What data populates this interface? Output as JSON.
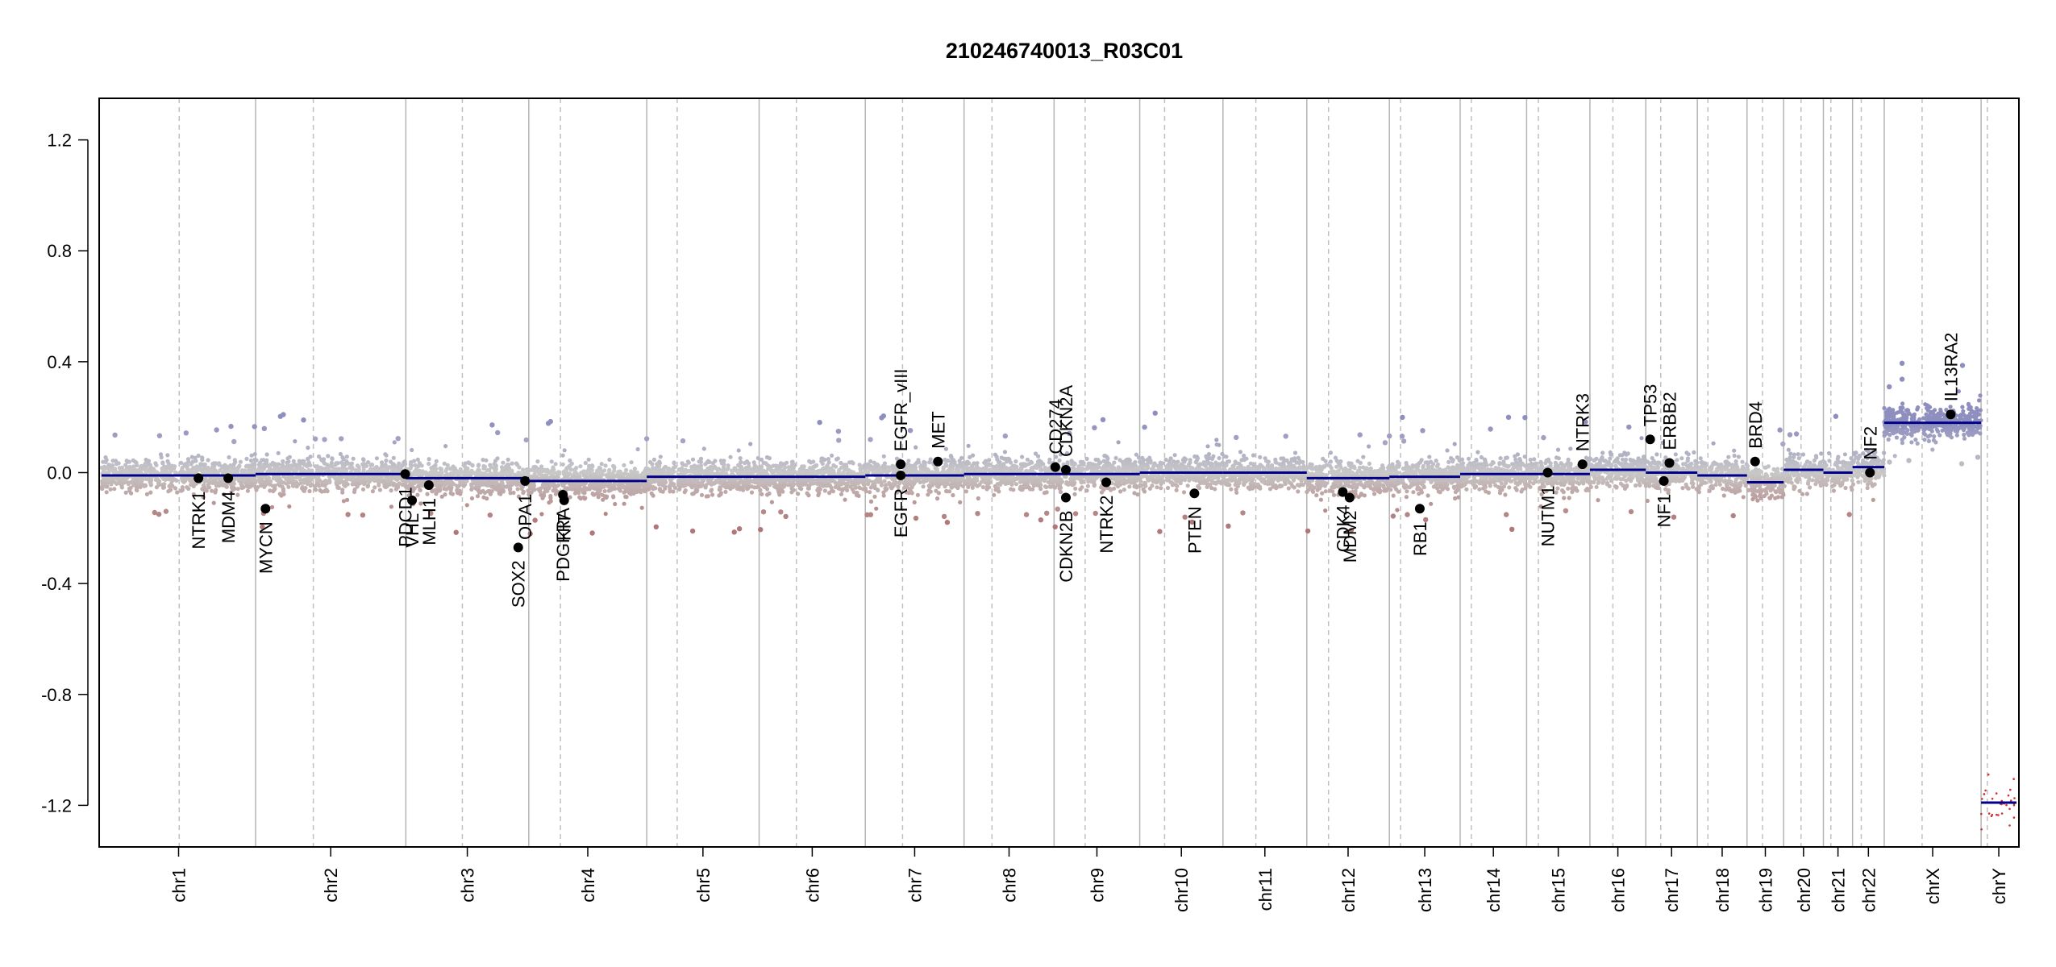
{
  "chart_data": {
    "type": "scatter",
    "title": "210246740013_R03C01",
    "xlabel": "",
    "ylabel": "",
    "ylim": [
      -1.35,
      1.35
    ],
    "yticks": [
      -1.2,
      -0.8,
      -0.4,
      0.0,
      0.4,
      0.8,
      1.2
    ],
    "ytick_labels": [
      "-1.2",
      "-0.8",
      "-0.4",
      "0.0",
      "0.4",
      "0.8",
      "1.2"
    ],
    "grid": false,
    "legend": "none",
    "colors": {
      "segment": "#00008b",
      "gain": "#8f8fbf",
      "loss": "#b07878",
      "neutral": "#c8c8c8",
      "gene_point": "#000000",
      "boundary": "#b4b4b4",
      "centromere": "#c0c0c0"
    },
    "chromosomes": [
      {
        "name": "chr1",
        "start": 0,
        "end": 248,
        "centromere": 125
      },
      {
        "name": "chr2",
        "start": 248,
        "end": 490,
        "centromere": 341
      },
      {
        "name": "chr3",
        "start": 490,
        "end": 688,
        "centromere": 581
      },
      {
        "name": "chr4",
        "start": 688,
        "end": 878,
        "centromere": 739
      },
      {
        "name": "chr5",
        "start": 878,
        "end": 1059,
        "centromere": 927
      },
      {
        "name": "chr6",
        "start": 1059,
        "end": 1230,
        "centromere": 1119
      },
      {
        "name": "chr7",
        "start": 1230,
        "end": 1389,
        "centromere": 1290
      },
      {
        "name": "chr8",
        "start": 1389,
        "end": 1534,
        "centromere": 1434
      },
      {
        "name": "chr9",
        "start": 1534,
        "end": 1672,
        "centromere": 1584
      },
      {
        "name": "chr10",
        "start": 1672,
        "end": 1806,
        "centromere": 1712
      },
      {
        "name": "chr11",
        "start": 1806,
        "end": 1941,
        "centromere": 1859
      },
      {
        "name": "chr12",
        "start": 1941,
        "end": 2074,
        "centromere": 1976
      },
      {
        "name": "chr13",
        "start": 2074,
        "end": 2188,
        "centromere": 2092
      },
      {
        "name": "chr14",
        "start": 2188,
        "end": 2295,
        "centromere": 2206
      },
      {
        "name": "chr15",
        "start": 2295,
        "end": 2397,
        "centromere": 2314
      },
      {
        "name": "chr16",
        "start": 2397,
        "end": 2487,
        "centromere": 2434
      },
      {
        "name": "chr17",
        "start": 2487,
        "end": 2570,
        "centromere": 2511
      },
      {
        "name": "chr18",
        "start": 2570,
        "end": 2650,
        "centromere": 2587
      },
      {
        "name": "chr19",
        "start": 2650,
        "end": 2709,
        "centromere": 2675
      },
      {
        "name": "chr20",
        "start": 2709,
        "end": 2773,
        "centromere": 2737
      },
      {
        "name": "chr21",
        "start": 2773,
        "end": 2820,
        "centromere": 2785
      },
      {
        "name": "chr22",
        "start": 2820,
        "end": 2871,
        "centromere": 2834
      },
      {
        "name": "chrX",
        "start": 2871,
        "end": 3027,
        "centromere": 2932
      },
      {
        "name": "chrY",
        "start": 3027,
        "end": 3084,
        "centromere": 3037
      }
    ],
    "segments": [
      {
        "chrom": "chr1",
        "y": -0.01
      },
      {
        "chrom": "chr2",
        "y": -0.005
      },
      {
        "chrom": "chr3",
        "y": -0.02
      },
      {
        "chrom": "chr4",
        "y": -0.03
      },
      {
        "chrom": "chr5",
        "y": -0.015
      },
      {
        "chrom": "chr6",
        "y": -0.015
      },
      {
        "chrom": "chr7",
        "y": -0.01
      },
      {
        "chrom": "chr8",
        "y": -0.005
      },
      {
        "chrom": "chr9",
        "y": -0.005
      },
      {
        "chrom": "chr10",
        "y": 0.0
      },
      {
        "chrom": "chr11",
        "y": 0.0
      },
      {
        "chrom": "chr12",
        "y": -0.02
      },
      {
        "chrom": "chr13",
        "y": -0.015
      },
      {
        "chrom": "chr14",
        "y": -0.005
      },
      {
        "chrom": "chr15",
        "y": -0.005
      },
      {
        "chrom": "chr16",
        "y": 0.01
      },
      {
        "chrom": "chr17",
        "y": 0.0
      },
      {
        "chrom": "chr18",
        "y": -0.01
      },
      {
        "chrom": "chr19",
        "y": -0.035
      },
      {
        "chrom": "chr20",
        "y": 0.01
      },
      {
        "chrom": "chr21",
        "y": 0.0
      },
      {
        "chrom": "chr22",
        "y": 0.02
      },
      {
        "chrom": "chrX",
        "y": 0.18
      },
      {
        "chrom": "chrY",
        "y": -1.19
      }
    ],
    "genes": [
      {
        "name": "NTRK1",
        "x": 156,
        "y": -0.02,
        "side": "below"
      },
      {
        "name": "MDM4",
        "x": 204,
        "y": -0.02,
        "side": "below"
      },
      {
        "name": "MYCN",
        "x": 264,
        "y": -0.13,
        "side": "below"
      },
      {
        "name": "PDCD1",
        "x": 489,
        "y": -0.005,
        "side": "below"
      },
      {
        "name": "VHL",
        "x": 500,
        "y": -0.1,
        "side": "below"
      },
      {
        "name": "MLH1",
        "x": 527,
        "y": -0.045,
        "side": "below"
      },
      {
        "name": "SOX2",
        "x": 671,
        "y": -0.27,
        "side": "below"
      },
      {
        "name": "OPA1",
        "x": 682,
        "y": -0.03,
        "side": "below"
      },
      {
        "name": "PDGFRA",
        "x": 743,
        "y": -0.08,
        "side": "below"
      },
      {
        "name": "KIT",
        "x": 745,
        "y": -0.1,
        "side": "below"
      },
      {
        "name": "EGFR",
        "x": 1287,
        "y": -0.01,
        "side": "below"
      },
      {
        "name": "EGFR_vIII",
        "x": 1287,
        "y": 0.03,
        "side": "above"
      },
      {
        "name": "MET",
        "x": 1347,
        "y": 0.04,
        "side": "above"
      },
      {
        "name": "CD274",
        "x": 1536,
        "y": 0.02,
        "side": "above"
      },
      {
        "name": "CDKN2A",
        "x": 1553,
        "y": 0.01,
        "side": "above"
      },
      {
        "name": "CDKN2B",
        "x": 1553,
        "y": -0.09,
        "side": "below"
      },
      {
        "name": "NTRK2",
        "x": 1618,
        "y": -0.035,
        "side": "below"
      },
      {
        "name": "PTEN",
        "x": 1760,
        "y": -0.075,
        "side": "below"
      },
      {
        "name": "CDK4",
        "x": 1999,
        "y": -0.07,
        "side": "below"
      },
      {
        "name": "MDM2",
        "x": 2010,
        "y": -0.09,
        "side": "below"
      },
      {
        "name": "RB1",
        "x": 2123,
        "y": -0.13,
        "side": "below"
      },
      {
        "name": "NUTM1",
        "x": 2329,
        "y": 0.0,
        "side": "below"
      },
      {
        "name": "NTRK3",
        "x": 2385,
        "y": 0.03,
        "side": "above"
      },
      {
        "name": "TP53",
        "x": 2494,
        "y": 0.12,
        "side": "above"
      },
      {
        "name": "NF1",
        "x": 2516,
        "y": -0.03,
        "side": "below"
      },
      {
        "name": "ERBB2",
        "x": 2525,
        "y": 0.035,
        "side": "above"
      },
      {
        "name": "BRD4",
        "x": 2663,
        "y": 0.04,
        "side": "above"
      },
      {
        "name": "NF2",
        "x": 2848,
        "y": 0.0,
        "side": "above"
      },
      {
        "name": "IL13RA2",
        "x": 2978,
        "y": 0.21,
        "side": "above"
      }
    ]
  }
}
